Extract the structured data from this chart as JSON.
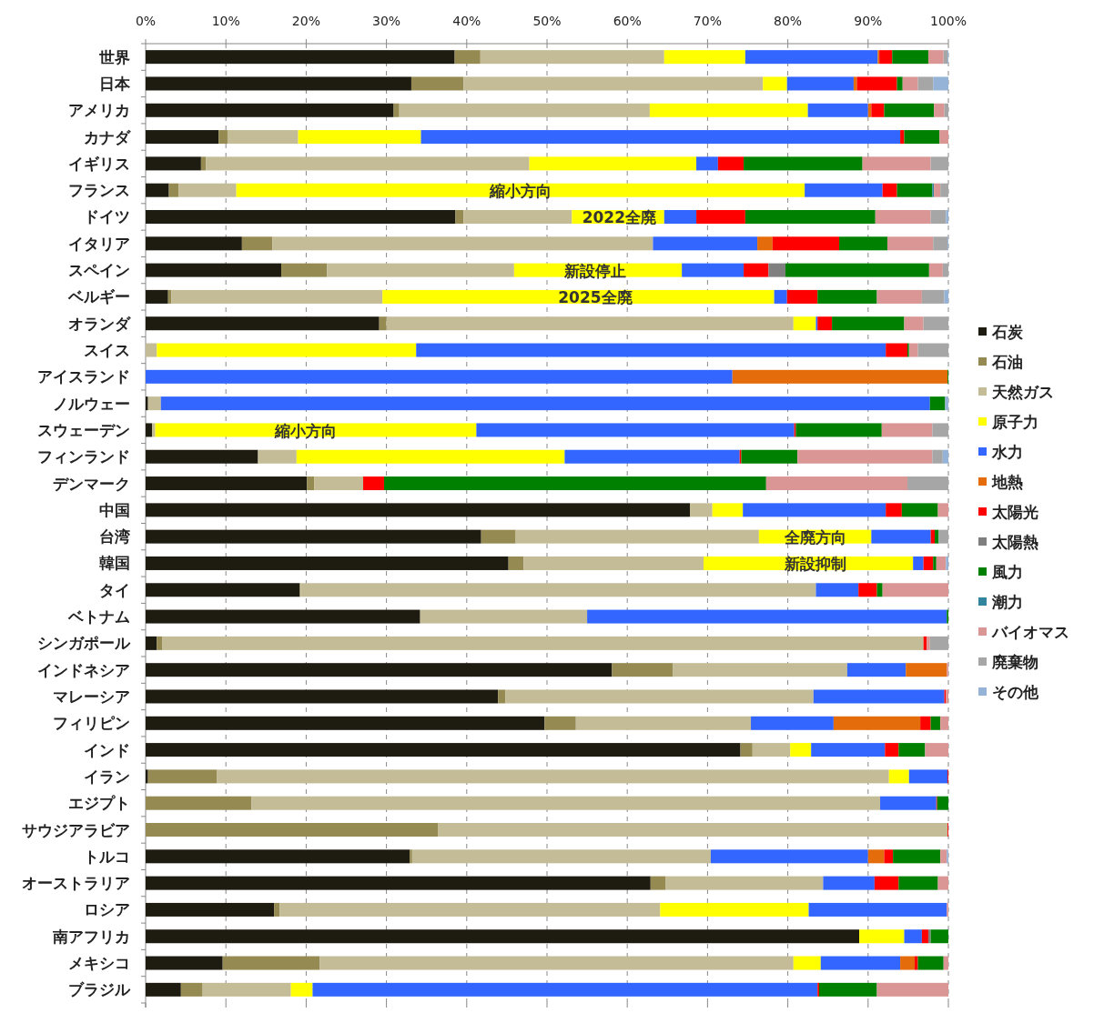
{
  "chart_data": {
    "type": "bar",
    "orientation": "horizontal",
    "stacked": true,
    "grid": "x",
    "legend": "right",
    "categories": [
      "世界",
      "日本",
      "アメリカ",
      "カナダ",
      "イギリス",
      "フランス",
      "ドイツ",
      "イタリア",
      "スペイン",
      "ベルギー",
      "オランダ",
      "スイス",
      "アイスランド",
      "ノルウェー",
      "スウェーデン",
      "フィンランド",
      "デンマーク",
      "中国",
      "台湾",
      "韓国",
      "タイ",
      "ベトナム",
      "シンガポール",
      "インドネシア",
      "マレーシア",
      "フィリピン",
      "インド",
      "イラン",
      "エジプト",
      "サウジアラビア",
      "トルコ",
      "オーストラリア",
      "ロシア",
      "南アフリカ",
      "メキシコ",
      "ブラジル"
    ],
    "xlim": [
      0,
      100
    ],
    "xticks": [
      {
        "value": 0,
        "label": "0%"
      },
      {
        "value": 10,
        "label": "10%"
      },
      {
        "value": 20,
        "label": "20%"
      },
      {
        "value": 30,
        "label": "30%"
      },
      {
        "value": 40,
        "label": "40%"
      },
      {
        "value": 50,
        "label": "50%"
      },
      {
        "value": 60,
        "label": "60%"
      },
      {
        "value": 70,
        "label": "70%"
      },
      {
        "value": 80,
        "label": "80%"
      },
      {
        "value": 90,
        "label": "90%"
      },
      {
        "value": 100,
        "label": "100%"
      }
    ],
    "series": [
      {
        "name": "石炭",
        "color": "#1e1b10",
        "values": [
          38.5,
          33.1,
          30.9,
          9.1,
          6.9,
          2.9,
          38.6,
          12.0,
          16.9,
          2.8,
          29.1,
          0,
          0,
          0.3,
          0.8,
          14.0,
          20.1,
          67.8,
          41.8,
          45.2,
          19.2,
          34.2,
          1.4,
          58.1,
          43.9,
          49.7,
          74.1,
          0.3,
          0,
          0,
          32.9,
          62.9,
          16.0,
          88.9,
          9.6,
          4.4
        ]
      },
      {
        "name": "石油",
        "color": "#958b52",
        "values": [
          3.2,
          6.5,
          0.7,
          1.1,
          0.6,
          1.2,
          1.0,
          3.8,
          5.7,
          0.4,
          0.9,
          0,
          0,
          0,
          0,
          0,
          0.9,
          0,
          4.3,
          1.9,
          0.1,
          0,
          0.7,
          7.6,
          0.9,
          3.9,
          1.5,
          8.6,
          13.2,
          36.4,
          0.3,
          1.9,
          0.7,
          0,
          12.1,
          2.7
        ]
      },
      {
        "name": "天然ガス",
        "color": "#c4bc96",
        "values": [
          22.9,
          37.3,
          31.2,
          8.8,
          40.3,
          7.2,
          13.5,
          47.4,
          23.3,
          26.3,
          50.7,
          1.4,
          0,
          1.6,
          0.4,
          4.8,
          6.1,
          2.8,
          30.3,
          22.4,
          64.2,
          20.8,
          94.8,
          21.7,
          38.4,
          21.8,
          4.7,
          83.7,
          78.3,
          63.5,
          37.2,
          19.6,
          47.4,
          0,
          59.0,
          11.0
        ]
      },
      {
        "name": "原子力",
        "color": "#ffff00",
        "values": [
          10.1,
          3.0,
          19.7,
          15.3,
          20.8,
          70.8,
          11.5,
          0,
          20.9,
          48.8,
          2.8,
          32.3,
          0,
          0,
          40.0,
          33.4,
          0,
          3.8,
          14.0,
          26.1,
          0,
          0,
          0,
          0,
          0,
          0,
          2.6,
          2.5,
          0,
          0,
          0,
          0,
          18.5,
          5.6,
          3.4,
          2.7
        ]
      },
      {
        "name": "水力",
        "color": "#3366ff",
        "values": [
          16.5,
          8.3,
          7.5,
          59.7,
          2.7,
          9.7,
          4.0,
          13.0,
          7.7,
          1.6,
          0.2,
          58.5,
          73.1,
          95.8,
          39.6,
          21.8,
          0,
          17.8,
          7.4,
          1.3,
          5.3,
          44.8,
          0,
          7.3,
          16.3,
          10.3,
          9.2,
          4.8,
          7.0,
          0,
          19.6,
          6.4,
          17.2,
          2.2,
          9.9,
          62.9
        ]
      },
      {
        "name": "地熱",
        "color": "#e46c0a",
        "values": [
          0.2,
          0.4,
          0.4,
          0,
          0,
          0,
          0,
          1.9,
          0,
          0,
          0,
          0,
          26.8,
          0,
          0,
          0,
          0,
          0,
          0,
          0,
          0,
          0,
          0,
          5.1,
          0,
          10.8,
          0,
          0,
          0,
          0,
          2.0,
          0,
          0,
          0,
          1.8,
          0
        ]
      },
      {
        "name": "太陽光",
        "color": "#ff0000",
        "values": [
          1.6,
          5.0,
          1.6,
          0.5,
          3.2,
          1.8,
          6.1,
          8.3,
          3.1,
          3.8,
          1.8,
          2.7,
          0,
          0,
          0.2,
          0.2,
          2.6,
          2.0,
          0.5,
          1.2,
          2.3,
          0,
          0.4,
          0,
          0.2,
          1.3,
          1.7,
          0.1,
          0.1,
          0.1,
          1.1,
          3.0,
          0,
          0.8,
          0.4,
          0.2
        ]
      },
      {
        "name": "太陽熱",
        "color": "#7f7f7f",
        "values": [
          0,
          0,
          0,
          0,
          0,
          0,
          0,
          0,
          2.1,
          0,
          0,
          0,
          0,
          0,
          0,
          0,
          0,
          0,
          0,
          0,
          0,
          0,
          0,
          0,
          0,
          0,
          0,
          0,
          0,
          0,
          0,
          0,
          0,
          0.3,
          0,
          0
        ]
      },
      {
        "name": "風力",
        "color": "#008000",
        "values": [
          4.5,
          0.7,
          6.2,
          4.4,
          14.8,
          4.4,
          16.2,
          6.0,
          17.9,
          7.4,
          9.0,
          0.2,
          0.1,
          1.9,
          10.7,
          7.0,
          47.6,
          4.5,
          0.5,
          0.4,
          0.7,
          0.2,
          0,
          0,
          0,
          1.2,
          3.3,
          0,
          1.4,
          0,
          5.9,
          4.9,
          0,
          2.2,
          3.2,
          7.2
        ]
      },
      {
        "name": "潮力",
        "color": "#31859c",
        "values": [
          0,
          0,
          0,
          0,
          0,
          0.2,
          0,
          0,
          0,
          0,
          0,
          0,
          0,
          0,
          0,
          0,
          0,
          0,
          0,
          0,
          0,
          0,
          0,
          0,
          0,
          0,
          0,
          0,
          0,
          0,
          0,
          0,
          0,
          0,
          0,
          0
        ]
      },
      {
        "name": "バイオマス",
        "color": "#d99694",
        "values": [
          1.9,
          1.9,
          1.3,
          1.1,
          8.5,
          0.8,
          6.9,
          5.7,
          1.7,
          5.6,
          2.4,
          1.1,
          0,
          0,
          6.3,
          16.8,
          17.6,
          1.3,
          0,
          1.2,
          8.2,
          0,
          0.4,
          0.2,
          0.3,
          1.0,
          2.9,
          0,
          0,
          0,
          0.8,
          1.3,
          0.2,
          0,
          0.6,
          8.9
        ]
      },
      {
        "name": "廃棄物",
        "color": "#a6a6a6",
        "values": [
          0.5,
          1.9,
          0.5,
          0,
          2.2,
          1.0,
          1.9,
          1.8,
          0.7,
          2.8,
          3.1,
          3.8,
          0,
          0,
          2.0,
          1.3,
          5.1,
          0,
          1.2,
          0,
          0,
          0,
          2.3,
          0,
          0,
          0,
          0,
          0,
          0,
          0,
          0,
          0,
          0,
          0,
          0,
          0
        ]
      },
      {
        "name": "その他",
        "color": "#95b3d7",
        "values": [
          0.1,
          1.9,
          0,
          0,
          0,
          0,
          0.3,
          0.1,
          0,
          0.5,
          0,
          0,
          0,
          0.4,
          0,
          0.7,
          0,
          0,
          0,
          0.3,
          0,
          0,
          0,
          0,
          0,
          0,
          0,
          0,
          0,
          0,
          0.2,
          0,
          0,
          0,
          0,
          0
        ]
      }
    ],
    "annotations": [
      {
        "text": "縮小方向",
        "x": 46.7,
        "y": "フランス"
      },
      {
        "text": "2022全廃",
        "x": 59,
        "y": "ドイツ"
      },
      {
        "text": "新設停止",
        "x": 56,
        "y": "スペイン"
      },
      {
        "text": "2025全廃",
        "x": 56,
        "y": "ベルギー"
      },
      {
        "text": "縮小方向",
        "x": 20,
        "y": "スウェーデン"
      },
      {
        "text": "全廃方向",
        "x": 83.5,
        "y": "台湾"
      },
      {
        "text": "新設抑制",
        "x": 83.5,
        "y": "韓国"
      }
    ]
  }
}
